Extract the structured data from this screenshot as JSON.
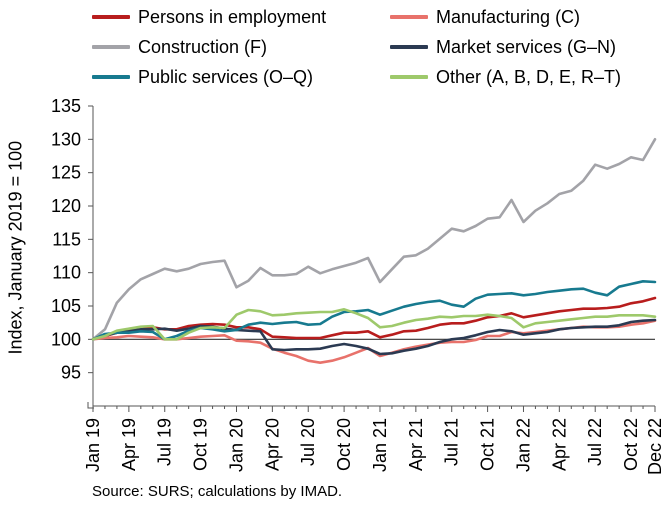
{
  "chart_data": {
    "type": "line",
    "title": "",
    "xlabel": "",
    "ylabel": "Index, January 2019 = 100",
    "ylim": [
      90,
      135
    ],
    "yticks": [
      95,
      100,
      105,
      110,
      115,
      120,
      125,
      130,
      135
    ],
    "xticks": [
      {
        "i": 0,
        "label": "Jan 19"
      },
      {
        "i": 3,
        "label": "Apr 19"
      },
      {
        "i": 6,
        "label": "Jul 19"
      },
      {
        "i": 9,
        "label": "Oct 19"
      },
      {
        "i": 12,
        "label": "Jan 20"
      },
      {
        "i": 15,
        "label": "Apr 20"
      },
      {
        "i": 18,
        "label": "Jul 20"
      },
      {
        "i": 21,
        "label": "Oct 20"
      },
      {
        "i": 24,
        "label": "Jan 21"
      },
      {
        "i": 27,
        "label": "Apr 21"
      },
      {
        "i": 30,
        "label": "Jul 21"
      },
      {
        "i": 33,
        "label": "Oct 21"
      },
      {
        "i": 36,
        "label": "Jan 22"
      },
      {
        "i": 39,
        "label": "Apr 22"
      },
      {
        "i": 42,
        "label": "Jul 22"
      },
      {
        "i": 45,
        "label": "Oct 22"
      },
      {
        "i": 47,
        "label": "Dec 22"
      }
    ],
    "reference_line": 100,
    "legend_position": "top",
    "series": [
      {
        "name": "Persons in employment",
        "color": "#b81d1d",
        "values": [
          100,
          100.5,
          101,
          101.2,
          101.5,
          101.8,
          101.5,
          101.5,
          102,
          102.2,
          102.3,
          102.2,
          101.8,
          101.8,
          101.5,
          100.4,
          100.3,
          100.2,
          100.2,
          100.2,
          100.6,
          101,
          101,
          101.2,
          100.3,
          100.7,
          101.2,
          101.3,
          101.7,
          102.2,
          102.4,
          102.4,
          102.8,
          103.3,
          103.5,
          103.9,
          103.3,
          103.6,
          103.9,
          104.2,
          104.4,
          104.6,
          104.6,
          104.7,
          104.9,
          105.4,
          105.7,
          106.2
        ]
      },
      {
        "name": "Manufacturing (C)",
        "color": "#e8726b",
        "values": [
          100,
          100.2,
          100.3,
          100.5,
          100.4,
          100.3,
          100,
          100,
          100.2,
          100.4,
          100.5,
          100.6,
          99.8,
          99.7,
          99.5,
          98.6,
          98,
          97.5,
          96.8,
          96.5,
          96.8,
          97.3,
          98,
          98.7,
          97.5,
          98,
          98.5,
          98.9,
          99.2,
          99.5,
          99.6,
          99.6,
          99.9,
          100.5,
          100.5,
          101.1,
          100.9,
          101.1,
          101.3,
          101.5,
          101.7,
          101.9,
          101.8,
          101.8,
          101.9,
          102.2,
          102.4,
          102.8
        ]
      },
      {
        "name": "Construction (F)",
        "color": "#a3a3a8",
        "values": [
          100,
          101.5,
          105.5,
          107.5,
          109,
          109.8,
          110.6,
          110.2,
          110.6,
          111.3,
          111.6,
          111.8,
          107.8,
          108.8,
          110.7,
          109.6,
          109.6,
          109.8,
          110.9,
          109.9,
          110.5,
          111,
          111.5,
          112.2,
          108.6,
          110.5,
          112.4,
          112.6,
          113.6,
          115.1,
          116.6,
          116.2,
          117,
          118.1,
          118.3,
          120.9,
          117.6,
          119.3,
          120.4,
          121.8,
          122.3,
          123.8,
          126.2,
          125.6,
          126.3,
          127.3,
          126.9,
          130
        ]
      },
      {
        "name": "Market services (G–N)",
        "color": "#2b3a52",
        "values": [
          100,
          100.6,
          101,
          101.3,
          101.5,
          101.5,
          101.6,
          101.3,
          101.6,
          102,
          101.9,
          101.6,
          101.4,
          101.3,
          101.2,
          98.5,
          98.4,
          98.5,
          98.5,
          98.6,
          99,
          99.3,
          99,
          98.6,
          97.8,
          97.9,
          98.3,
          98.6,
          99,
          99.6,
          100,
          100.2,
          100.6,
          101.1,
          101.4,
          101.2,
          100.7,
          100.9,
          101.1,
          101.5,
          101.7,
          101.8,
          101.9,
          101.9,
          102.1,
          102.6,
          102.8,
          102.9
        ]
      },
      {
        "name": "Public services (O–Q)",
        "color": "#177a8f",
        "values": [
          100,
          100.8,
          101,
          101,
          101.2,
          101.1,
          100,
          100.5,
          101.3,
          101.7,
          101.5,
          101.2,
          101.4,
          102.2,
          102.5,
          102.3,
          102.5,
          102.6,
          102.2,
          102.3,
          103.4,
          104.1,
          104.2,
          104.4,
          103.7,
          104.3,
          104.9,
          105.3,
          105.6,
          105.8,
          105.2,
          104.9,
          106.1,
          106.7,
          106.8,
          106.9,
          106.6,
          106.8,
          107.1,
          107.3,
          107.5,
          107.6,
          107,
          106.6,
          107.9,
          108.3,
          108.7,
          108.6
        ]
      },
      {
        "name": "Other (A, B, D, E, R–T)",
        "color": "#9ec96b",
        "values": [
          100,
          100.5,
          101.3,
          101.6,
          101.9,
          102,
          100,
          100,
          101,
          101.7,
          101.8,
          101.7,
          103.7,
          104.4,
          104.2,
          103.6,
          103.7,
          103.9,
          104,
          104.1,
          104.1,
          104.5,
          103.9,
          103.2,
          101.8,
          102,
          102.5,
          102.9,
          103.1,
          103.4,
          103.3,
          103.5,
          103.5,
          103.7,
          103.5,
          103.2,
          101.8,
          102.4,
          102.6,
          102.8,
          103,
          103.2,
          103.4,
          103.4,
          103.6,
          103.6,
          103.6,
          103.4
        ]
      }
    ]
  },
  "source": "Source: SURS; calculations by IMAD."
}
